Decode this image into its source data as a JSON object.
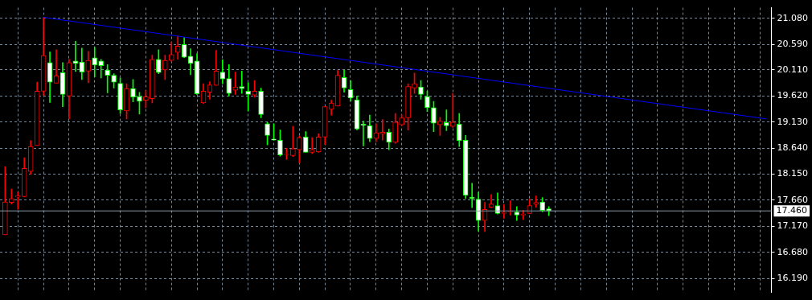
{
  "chart_data": {
    "type": "candlestick",
    "categories": [
      null,
      null,
      null,
      null,
      null,
      null,
      null,
      null,
      null,
      null,
      null,
      null,
      null,
      null,
      null,
      null,
      null,
      null,
      null,
      null,
      null,
      null,
      null,
      null,
      null,
      null,
      null,
      null,
      null,
      null,
      null,
      null,
      null,
      null,
      null,
      null,
      null,
      null,
      null,
      null,
      null,
      null,
      null,
      null,
      null,
      null,
      null,
      null,
      null,
      null,
      null,
      null,
      null,
      null,
      null,
      null,
      null,
      null,
      null,
      null,
      null,
      null,
      null,
      null,
      null,
      null,
      null,
      null,
      null,
      null,
      null,
      null,
      null,
      null,
      null,
      null,
      null,
      null,
      null,
      null,
      null,
      null,
      null,
      null,
      null,
      null,
      null,
      null,
      null,
      null,
      null,
      null,
      null,
      null,
      null,
      null,
      null,
      null,
      null,
      null,
      null,
      null,
      null,
      null,
      null,
      null,
      null,
      null,
      null,
      null,
      null,
      null,
      null,
      null,
      null,
      null,
      null,
      null,
      null,
      null
    ],
    "ohlc": [
      [
        17.01,
        18.29,
        17.01,
        17.63
      ],
      [
        17.62,
        17.87,
        17.59,
        17.69
      ],
      [
        17.72,
        17.81,
        17.49,
        17.74
      ],
      [
        17.73,
        18.46,
        17.72,
        18.26
      ],
      [
        18.2,
        18.78,
        18.15,
        18.67
      ],
      [
        18.69,
        19.88,
        18.69,
        19.71
      ],
      [
        19.71,
        21.1,
        19.63,
        20.38
      ],
      [
        20.25,
        20.45,
        19.5,
        19.88
      ],
      [
        19.86,
        20.49,
        19.86,
        20.0
      ],
      [
        20.06,
        20.25,
        19.42,
        19.65
      ],
      [
        19.62,
        20.31,
        19.19,
        20.25
      ],
      [
        20.28,
        20.65,
        20.08,
        20.23
      ],
      [
        20.26,
        20.52,
        19.93,
        20.07
      ],
      [
        20.09,
        20.46,
        19.87,
        20.29
      ],
      [
        20.34,
        20.54,
        19.98,
        20.2
      ],
      [
        20.28,
        20.31,
        19.96,
        20.19
      ],
      [
        20.11,
        20.21,
        19.68,
        20.01
      ],
      [
        20.01,
        20.04,
        19.77,
        19.88
      ],
      [
        19.86,
        19.96,
        19.29,
        19.36
      ],
      [
        19.34,
        19.85,
        19.19,
        19.76
      ],
      [
        19.76,
        19.93,
        19.51,
        19.6
      ],
      [
        19.61,
        19.69,
        19.28,
        19.52
      ],
      [
        19.54,
        19.72,
        19.4,
        19.61
      ],
      [
        19.57,
        20.39,
        19.49,
        20.31
      ],
      [
        20.31,
        20.49,
        20.04,
        20.06
      ],
      [
        20.11,
        20.39,
        19.93,
        20.29
      ],
      [
        20.29,
        20.63,
        20.27,
        20.4
      ],
      [
        20.44,
        20.75,
        20.31,
        20.56
      ],
      [
        20.59,
        20.72,
        20.34,
        20.35
      ],
      [
        20.37,
        20.51,
        20.02,
        20.23
      ],
      [
        20.28,
        20.42,
        19.65,
        19.66
      ],
      [
        19.49,
        19.85,
        19.48,
        19.71
      ],
      [
        19.69,
        19.89,
        19.56,
        19.83
      ],
      [
        19.82,
        20.48,
        19.82,
        20.09
      ],
      [
        20.07,
        20.3,
        19.85,
        19.94
      ],
      [
        19.95,
        20.21,
        19.62,
        19.67
      ],
      [
        19.73,
        20.07,
        19.65,
        19.79
      ],
      [
        19.8,
        20.09,
        19.67,
        19.76
      ],
      [
        19.71,
        19.87,
        19.34,
        19.65
      ],
      [
        19.64,
        19.91,
        19.6,
        19.71
      ],
      [
        19.71,
        19.77,
        19.21,
        19.27
      ],
      [
        19.1,
        19.12,
        18.7,
        18.88
      ],
      [
        18.81,
        19.1,
        18.79,
        18.79
      ],
      [
        18.79,
        18.98,
        18.49,
        18.51
      ],
      [
        18.52,
        18.64,
        18.43,
        18.53
      ],
      [
        18.5,
        19.05,
        18.48,
        18.63
      ],
      [
        18.61,
        18.87,
        18.36,
        18.84
      ],
      [
        18.85,
        18.95,
        18.56,
        18.56
      ],
      [
        18.56,
        18.84,
        18.54,
        18.61
      ],
      [
        18.57,
        18.91,
        18.56,
        18.85
      ],
      [
        18.85,
        19.42,
        18.71,
        19.42
      ],
      [
        19.37,
        19.54,
        19.26,
        19.49
      ],
      [
        19.43,
        20.1,
        19.43,
        20.01
      ],
      [
        19.97,
        20.11,
        19.69,
        19.77
      ],
      [
        19.74,
        19.91,
        19.52,
        19.58
      ],
      [
        19.55,
        19.62,
        18.98,
        19.0
      ],
      [
        19.09,
        19.15,
        18.68,
        19.07
      ],
      [
        19.06,
        19.26,
        18.76,
        18.82
      ],
      [
        18.82,
        19.1,
        18.76,
        18.93
      ],
      [
        18.91,
        19.18,
        18.79,
        18.94
      ],
      [
        18.94,
        19.0,
        18.61,
        18.75
      ],
      [
        18.75,
        19.29,
        18.73,
        19.13
      ],
      [
        19.08,
        19.27,
        19.06,
        19.21
      ],
      [
        19.21,
        19.85,
        18.98,
        19.8
      ],
      [
        19.77,
        20.05,
        19.67,
        19.85
      ],
      [
        19.79,
        19.91,
        19.56,
        19.65
      ],
      [
        19.61,
        19.71,
        19.33,
        19.4
      ],
      [
        19.4,
        19.52,
        18.95,
        19.11
      ],
      [
        19.08,
        19.22,
        18.88,
        19.15
      ],
      [
        19.12,
        19.36,
        18.97,
        19.06
      ],
      [
        19.05,
        19.67,
        19.03,
        19.13
      ],
      [
        19.09,
        19.29,
        18.67,
        18.78
      ],
      [
        18.79,
        18.88,
        17.69,
        17.75
      ],
      [
        17.72,
        17.98,
        17.52,
        17.69
      ],
      [
        17.68,
        17.81,
        17.08,
        17.28
      ],
      [
        17.28,
        17.62,
        17.07,
        17.49
      ],
      [
        17.53,
        17.77,
        17.52,
        17.59
      ],
      [
        17.56,
        17.8,
        17.4,
        17.41
      ],
      [
        17.41,
        17.58,
        17.32,
        17.43
      ],
      [
        17.44,
        17.65,
        17.38,
        17.45
      ],
      [
        17.44,
        17.54,
        17.28,
        17.38
      ],
      [
        17.38,
        17.47,
        17.3,
        17.4
      ],
      [
        17.41,
        17.68,
        17.41,
        17.56
      ],
      [
        17.58,
        17.74,
        17.53,
        17.62
      ],
      [
        17.63,
        17.71,
        17.44,
        17.47
      ],
      [
        17.5,
        17.54,
        17.37,
        17.46
      ],
      null,
      null,
      null,
      null,
      null,
      null,
      null,
      null,
      null,
      null,
      null,
      null,
      null,
      null,
      null,
      null,
      null,
      null,
      null,
      null,
      null,
      null,
      null,
      null,
      null,
      null,
      null,
      null,
      null,
      null,
      null,
      null,
      null,
      null
    ],
    "colors": [
      "#ff0000",
      "#ff0000",
      "#ff0000",
      "#ff0000",
      "#ff0000",
      "#ff0000",
      "#ff0000",
      "#00ff00",
      "#ff0000",
      "#00ff00",
      "#ff0000",
      "#00ff00",
      "#00ff00",
      "#ff0000",
      "#00ff00",
      "#00ff00",
      "#00ff00",
      "#00ff00",
      "#00ff00",
      "#ff0000",
      "#00ff00",
      "#00ff00",
      "#ff0000",
      "#ff0000",
      "#00ff00",
      "#ff0000",
      "#ff0000",
      "#ff0000",
      "#00ff00",
      "#00ff00",
      "#00ff00",
      "#ff0000",
      "#ff0000",
      "#ff0000",
      "#00ff00",
      "#00ff00",
      "#ff0000",
      "#00ff00",
      "#00ff00",
      "#ff0000",
      "#00ff00",
      "#00ff00",
      "#00ff00",
      "#00ff00",
      "#ff0000",
      "#ff0000",
      "#ff0000",
      "#00ff00",
      "#ff0000",
      "#ff0000",
      "#ff0000",
      "#ff0000",
      "#ff0000",
      "#00ff00",
      "#00ff00",
      "#00ff00",
      "#00ff00",
      "#00ff00",
      "#ff0000",
      "#ff0000",
      "#00ff00",
      "#ff0000",
      "#ff0000",
      "#ff0000",
      "#ff0000",
      "#00ff00",
      "#00ff00",
      "#00ff00",
      "#ff0000",
      "#00ff00",
      "#ff0000",
      "#00ff00",
      "#00ff00",
      "#00ff00",
      "#00ff00",
      "#ff0000",
      "#ff0000",
      "#00ff00",
      "#ff0000",
      "#ff0000",
      "#00ff00",
      "#ff0000",
      "#ff0000",
      "#ff0000",
      "#00ff00",
      "#00ff00",
      null,
      null,
      null,
      null,
      null,
      null,
      null,
      null,
      null,
      null,
      null,
      null,
      null,
      null,
      null,
      null,
      null,
      null,
      null,
      null,
      null,
      null,
      null,
      null,
      null,
      null,
      null,
      null,
      null,
      null,
      null,
      null,
      null,
      null
    ],
    "series": [
      {
        "type": "line",
        "color": "#0000ff",
        "values": [
          null,
          null,
          null,
          null,
          null,
          null,
          21.1,
          null,
          null,
          null,
          null,
          null,
          null,
          null,
          null,
          null,
          null,
          null,
          null,
          null,
          null,
          null,
          null,
          null,
          null,
          null,
          null,
          null,
          null,
          null,
          null,
          null,
          null,
          null,
          null,
          null,
          null,
          null,
          null,
          null,
          null,
          null,
          null,
          null,
          null,
          null,
          null,
          null,
          null,
          null,
          null,
          null,
          null,
          null,
          null,
          null,
          null,
          null,
          null,
          null,
          null,
          null,
          null,
          null,
          null,
          null,
          null,
          null,
          null,
          null,
          null,
          null,
          null,
          null,
          null,
          null,
          null,
          null,
          null,
          null,
          null,
          null,
          null,
          null,
          null,
          null,
          null,
          null,
          null,
          null,
          null,
          null,
          null,
          null,
          null,
          null,
          null,
          null,
          null,
          null,
          null,
          null,
          null,
          null,
          null,
          null,
          null,
          null,
          null,
          null,
          null,
          null,
          null,
          null,
          null,
          null,
          null,
          null,
          null,
          19.19
        ]
      }
    ],
    "ylim": [
      15.93,
      21.28
    ],
    "yticks": [
      {
        "value": 16.19,
        "label": "16.190"
      },
      {
        "value": 16.68,
        "label": "16.680"
      },
      {
        "value": 17.17,
        "label": "17.170"
      },
      {
        "value": 17.66,
        "label": "17.660"
      },
      {
        "value": 18.15,
        "label": "18.150"
      },
      {
        "value": 18.64,
        "label": "18.640"
      },
      {
        "value": 19.13,
        "label": "19.130"
      },
      {
        "value": 19.62,
        "label": "19.620"
      },
      {
        "value": 20.11,
        "label": "20.110"
      },
      {
        "value": 20.59,
        "label": "20.590"
      },
      {
        "value": 21.08,
        "label": "21.080"
      }
    ],
    "ref_lines": [
      {
        "axis": "y",
        "value": 17.46,
        "label": "17.460",
        "color": "#8899aa"
      }
    ],
    "grid": true,
    "legend": false,
    "tick_labels": "y"
  }
}
